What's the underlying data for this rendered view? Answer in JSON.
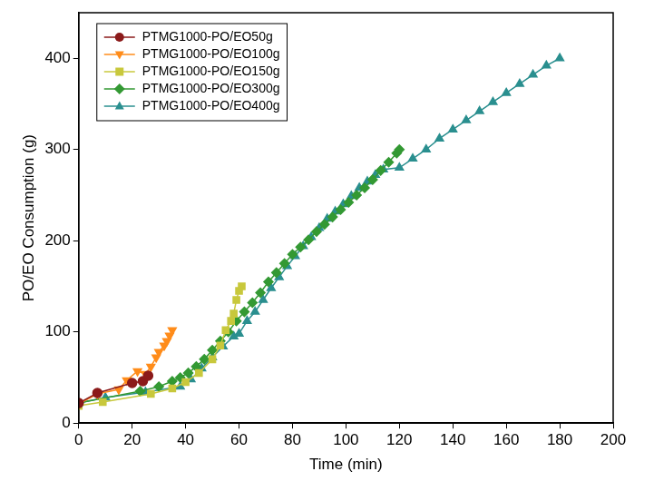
{
  "chart_data": {
    "type": "line",
    "x_label": "Time (min)",
    "y_label": "PO/EO Consumption (g)",
    "xlim": [
      0,
      200
    ],
    "xticks": [
      0,
      20,
      40,
      60,
      80,
      100,
      120,
      140,
      160,
      180,
      200
    ],
    "ylim": [
      0,
      450
    ],
    "yticks": [
      0,
      100,
      200,
      300,
      400
    ],
    "grid": false,
    "legend": "upper left",
    "series": [
      {
        "name": "PTMG1000-PO/EO50g",
        "color": "#8b1a1a",
        "marker": "circle",
        "x": [
          0,
          7,
          20,
          24,
          26
        ],
        "values": [
          22,
          33,
          44,
          46,
          52
        ]
      },
      {
        "name": "PTMG1000-PO/EO100g",
        "color": "#ff8c1a",
        "marker": "triangle-down",
        "x": [
          0,
          7,
          15,
          18,
          22,
          25,
          27,
          29,
          30,
          32,
          33,
          34,
          35
        ],
        "values": [
          21,
          32,
          37,
          47,
          57,
          54,
          62,
          72,
          78,
          85,
          90,
          96,
          102
        ]
      },
      {
        "name": "PTMG1000-PO/EO150g",
        "color": "#c8c83c",
        "marker": "square",
        "x": [
          0,
          9,
          27,
          35,
          40,
          45,
          50,
          53,
          55,
          57,
          58,
          59,
          60,
          61
        ],
        "values": [
          19,
          23,
          32,
          38,
          45,
          55,
          70,
          85,
          102,
          112,
          120,
          135,
          145,
          150
        ]
      },
      {
        "name": "PTMG1000-PO/EO300g",
        "color": "#339933",
        "marker": "diamond",
        "x": [
          0,
          23,
          30,
          35,
          38,
          41,
          44,
          47,
          50,
          53,
          56,
          59,
          62,
          65,
          68,
          71,
          74,
          77,
          80,
          83,
          86,
          89,
          92,
          95,
          98,
          101,
          104,
          107,
          110,
          113,
          116,
          119,
          120
        ],
        "values": [
          22,
          35,
          40,
          46,
          50,
          55,
          62,
          70,
          80,
          90,
          100,
          112,
          122,
          132,
          143,
          155,
          165,
          175,
          185,
          193,
          201,
          210,
          218,
          226,
          234,
          242,
          250,
          258,
          267,
          277,
          286,
          296,
          300
        ]
      },
      {
        "name": "PTMG1000-PO/EO400g",
        "color": "#2a8f8f",
        "marker": "triangle",
        "x": [
          0,
          10,
          25,
          38,
          42,
          46,
          50,
          54,
          58,
          60,
          63,
          66,
          69,
          72,
          75,
          78,
          81,
          84,
          87,
          90,
          93,
          96,
          99,
          102,
          105,
          108,
          111,
          114,
          120,
          125,
          130,
          135,
          140,
          145,
          150,
          155,
          160,
          165,
          170,
          175,
          180
        ],
        "values": [
          22,
          28,
          34,
          40,
          48,
          60,
          72,
          84,
          95,
          98,
          112,
          122,
          135,
          148,
          160,
          172,
          183,
          194,
          204,
          214,
          224,
          232,
          240,
          249,
          258,
          265,
          272,
          278,
          280,
          290,
          300,
          312,
          322,
          332,
          342,
          352,
          362,
          372,
          382,
          392,
          400
        ]
      }
    ]
  }
}
